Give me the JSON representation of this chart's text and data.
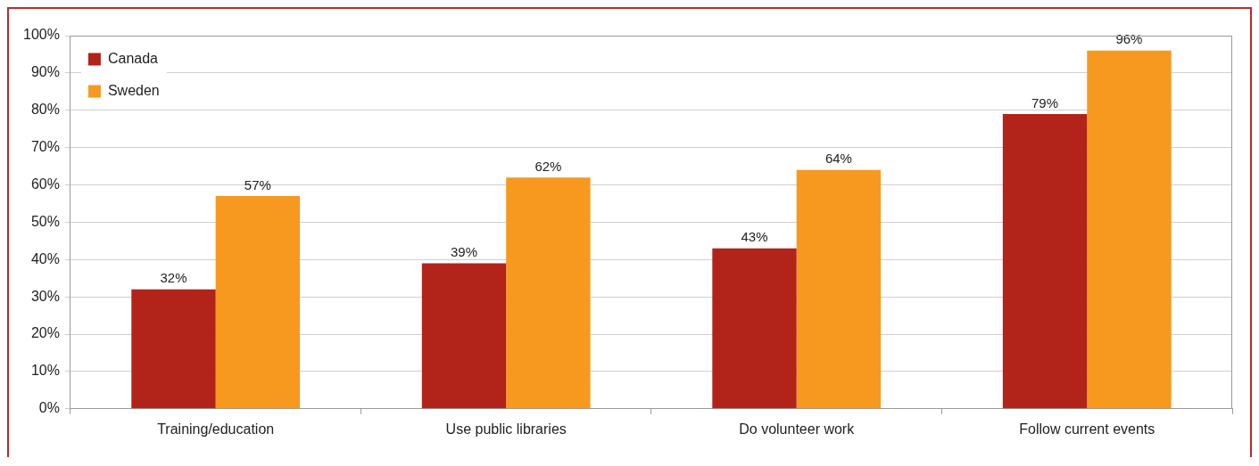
{
  "chart_data": {
    "type": "bar",
    "categories": [
      "Training/education",
      "Use public libraries",
      "Do volunteer work",
      "Follow current events"
    ],
    "series": [
      {
        "name": "Canada",
        "color": "#b22319",
        "values": [
          32,
          39,
          43,
          79
        ],
        "value_labels": [
          "32%",
          "39%",
          "43%",
          "79%"
        ]
      },
      {
        "name": "Sweden",
        "color": "#f7991f",
        "values": [
          57,
          62,
          64,
          96
        ],
        "value_labels": [
          "57%",
          "62%",
          "64%",
          "96%"
        ]
      }
    ],
    "ylim": [
      0,
      100
    ],
    "yticks": [
      {
        "value": 0,
        "label": "0%"
      },
      {
        "value": 10,
        "label": "10%"
      },
      {
        "value": 20,
        "label": "20%"
      },
      {
        "value": 30,
        "label": "30%"
      },
      {
        "value": 40,
        "label": "40%"
      },
      {
        "value": 50,
        "label": "50%"
      },
      {
        "value": 60,
        "label": "60%"
      },
      {
        "value": 70,
        "label": "70%"
      },
      {
        "value": 80,
        "label": "80%"
      },
      {
        "value": 90,
        "label": "90%"
      },
      {
        "value": 100,
        "label": "100%"
      }
    ],
    "grid": "y",
    "legend": "top left"
  }
}
